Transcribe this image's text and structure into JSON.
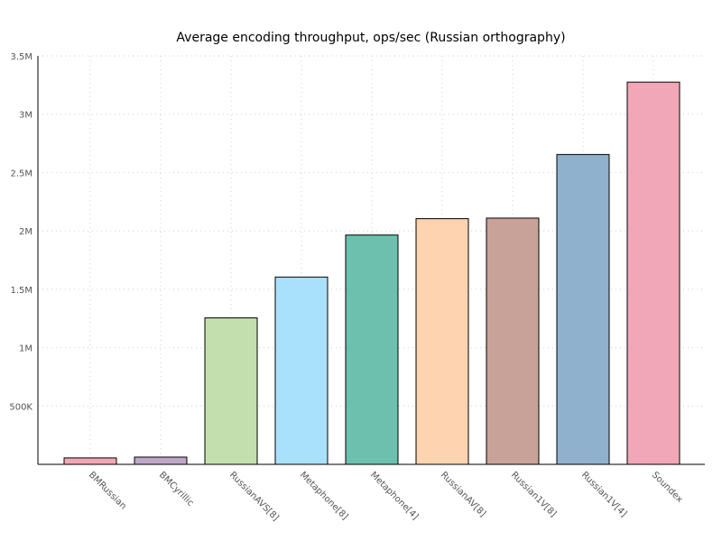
{
  "chart_data": {
    "type": "bar",
    "title": "Average encoding throughput, ops/sec (Russian orthography)",
    "xlabel": "",
    "ylabel": "",
    "categories": [
      "BMRussian",
      "BMCyrillic",
      "RussianAVS[8]",
      "Metaphone[8]",
      "Metaphone[4]",
      "RussianAV[8]",
      "Russian1V[8]",
      "Russian1V[4]",
      "Soundex"
    ],
    "values": [
      55000,
      62000,
      1255000,
      1605000,
      1965000,
      2105000,
      2110000,
      2655000,
      3275000
    ],
    "colors": [
      "#f2a7b6",
      "#bfa7c7",
      "#c2dfad",
      "#a9e1fb",
      "#6bc1ad",
      "#fed3af",
      "#c8a298",
      "#8fb1cd",
      "#f2a7b6"
    ],
    "ylim": [
      0,
      3500000
    ],
    "y_ticks": [
      {
        "value": 500000,
        "label": "500K"
      },
      {
        "value": 1000000,
        "label": "1M"
      },
      {
        "value": 1500000,
        "label": "1.5M"
      },
      {
        "value": 2000000,
        "label": "2M"
      },
      {
        "value": 2500000,
        "label": "2.5M"
      },
      {
        "value": 3000000,
        "label": "3M"
      },
      {
        "value": 3500000,
        "label": "3.5M"
      }
    ],
    "grid": true,
    "legend": "none"
  }
}
